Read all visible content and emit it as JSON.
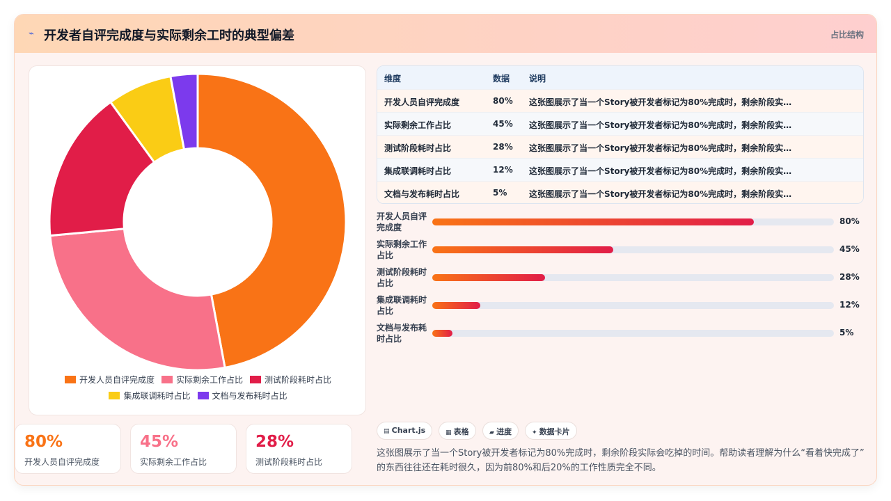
{
  "header": {
    "title": "开发者自评完成度与实际剩余工时的典型偏差",
    "tag": "占比结构"
  },
  "items": [
    {
      "label": "开发人员自评完成度",
      "value": 80,
      "value_label": "80%",
      "color": "#f97316"
    },
    {
      "label": "实际剩余工作占比",
      "value": 45,
      "value_label": "45%",
      "color": "#f87189"
    },
    {
      "label": "测试阶段耗时占比",
      "value": 28,
      "value_label": "28%",
      "color": "#e11d48"
    },
    {
      "label": "集成联调耗时占比",
      "value": 12,
      "value_label": "12%",
      "color": "#facc15"
    },
    {
      "label": "文档与发布耗时占比",
      "value": 5,
      "value_label": "5%",
      "color": "#7c3aed"
    }
  ],
  "table": {
    "headers": [
      "维度",
      "数据",
      "说明"
    ]
  },
  "tags": [
    "Chart.js",
    "表格",
    "进度",
    "数据卡片"
  ],
  "description": "这张图展示了当一个Story被开发者标记为80%完成时，剩余阶段实际会吃掉的时间。帮助读者理解为什么“看着快完成了”的东西往往还在耗时很久，因为前80%和后20%的工作性质完全不同。"
}
